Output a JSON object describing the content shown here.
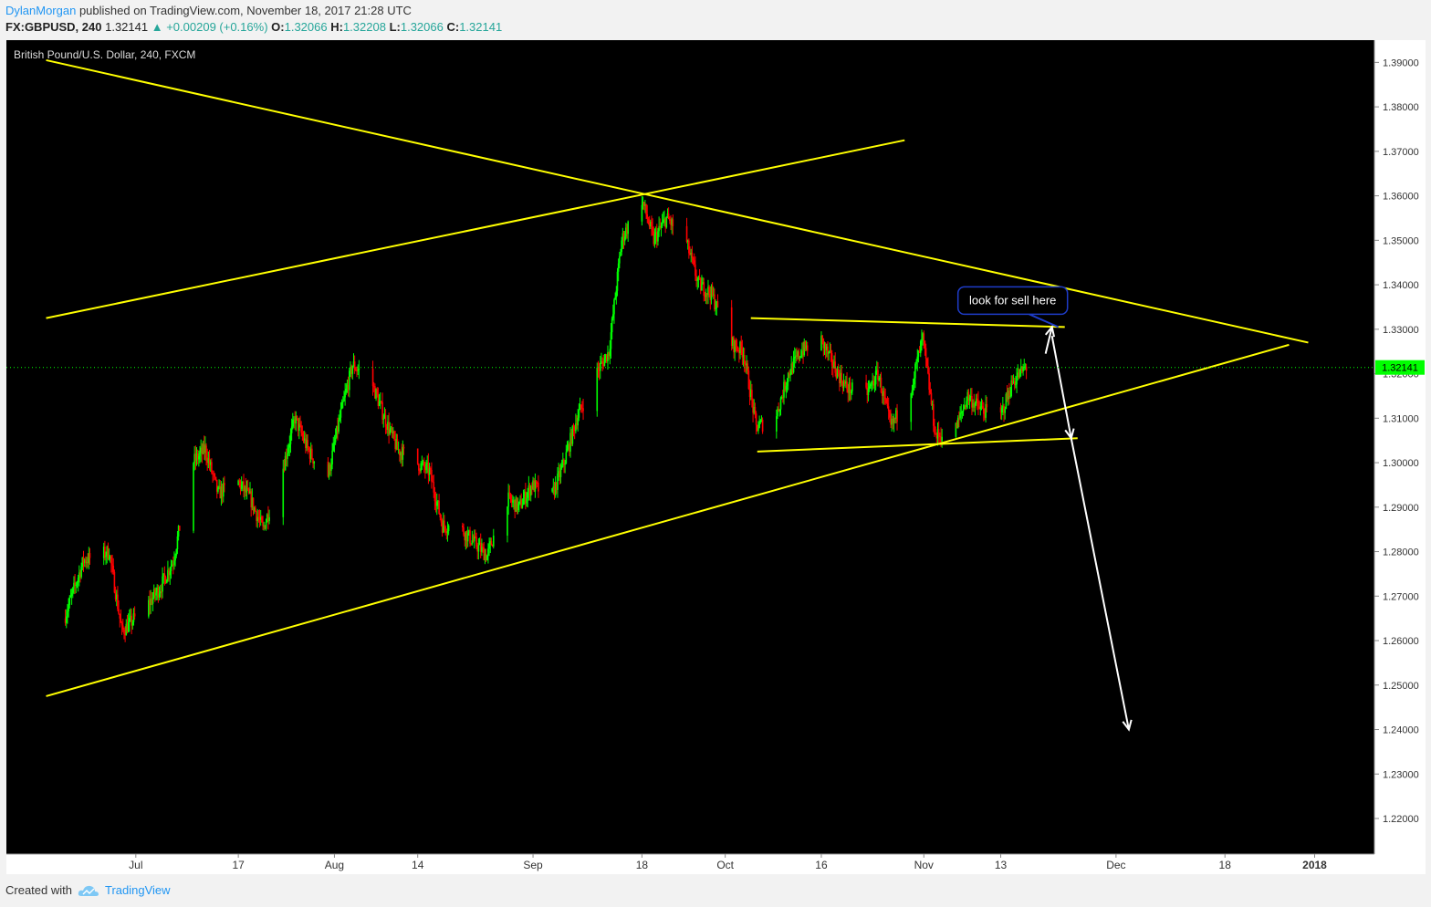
{
  "header": {
    "author": "DylanMorgan",
    "published": "published on TradingView.com, November 18, 2017 21:28 UTC",
    "symbol": "FX:GBPUSD, 240",
    "last": "1.32141",
    "change": "▲ +0.00209 (+0.16%)",
    "o_label": "O:",
    "o": "1.32066",
    "h_label": "H:",
    "h": "1.32208",
    "l_label": "L:",
    "l": "1.32066",
    "c_label": "C:",
    "c": "1.32141"
  },
  "footer": {
    "created_with": "Created with",
    "brand": "TradingView"
  },
  "colors": {
    "background": "#000000",
    "up": "#00ff00",
    "down": "#ff0000",
    "trendline": "#ffff00",
    "arrow": "#ffffff",
    "price_tag": "#00ff00"
  },
  "chart_data": {
    "type": "candlestick",
    "title": "British Pound/U.S. Dollar, 240, FXCM",
    "last_price": 1.32141,
    "last_price_label": "1.32141",
    "ylim": [
      1.212,
      1.395
    ],
    "yticks": [
      "1.22000",
      "1.23000",
      "1.24000",
      "1.25000",
      "1.26000",
      "1.27000",
      "1.28000",
      "1.29000",
      "1.30000",
      "1.31000",
      "1.32000",
      "1.33000",
      "1.34000",
      "1.35000",
      "1.36000",
      "1.37000",
      "1.38000",
      "1.39000"
    ],
    "xtick_labels": [
      "Jul",
      "17",
      "Aug",
      "14",
      "Sep",
      "18",
      "Oct",
      "16",
      "Nov",
      "13",
      "Dec",
      "18",
      "2018"
    ],
    "price_path": [
      [
        "2017-06-20",
        1.265
      ],
      [
        "2017-06-23",
        1.278
      ],
      [
        "2017-06-27",
        1.28
      ],
      [
        "2017-06-29",
        1.262
      ],
      [
        "2017-07-03",
        1.268
      ],
      [
        "2017-07-05",
        1.272
      ],
      [
        "2017-07-07",
        1.278
      ],
      [
        "2017-07-10",
        1.3
      ],
      [
        "2017-07-12",
        1.303
      ],
      [
        "2017-07-14",
        1.293
      ],
      [
        "2017-07-17",
        1.296
      ],
      [
        "2017-07-19",
        1.292
      ],
      [
        "2017-07-21",
        1.285
      ],
      [
        "2017-07-24",
        1.298
      ],
      [
        "2017-07-26",
        1.31
      ],
      [
        "2017-07-28",
        1.303
      ],
      [
        "2017-07-31",
        1.296
      ],
      [
        "2017-08-02",
        1.31
      ],
      [
        "2017-08-04",
        1.322
      ],
      [
        "2017-08-07",
        1.318
      ],
      [
        "2017-08-09",
        1.31
      ],
      [
        "2017-08-11",
        1.303
      ],
      [
        "2017-08-14",
        1.3
      ],
      [
        "2017-08-16",
        1.298
      ],
      [
        "2017-08-18",
        1.286
      ],
      [
        "2017-08-21",
        1.285
      ],
      [
        "2017-08-23",
        1.282
      ],
      [
        "2017-08-25",
        1.279
      ],
      [
        "2017-08-28",
        1.292
      ],
      [
        "2017-08-30",
        1.29
      ],
      [
        "2017-09-01",
        1.295
      ],
      [
        "2017-09-04",
        1.292
      ],
      [
        "2017-09-06",
        1.3
      ],
      [
        "2017-09-08",
        1.31
      ],
      [
        "2017-09-11",
        1.32
      ],
      [
        "2017-09-13",
        1.325
      ],
      [
        "2017-09-15",
        1.35
      ],
      [
        "2017-09-18",
        1.36
      ],
      [
        "2017-09-20",
        1.35
      ],
      [
        "2017-09-22",
        1.355
      ],
      [
        "2017-09-25",
        1.35
      ],
      [
        "2017-09-27",
        1.34
      ],
      [
        "2017-09-29",
        1.338
      ],
      [
        "2017-10-02",
        1.327
      ],
      [
        "2017-10-04",
        1.325
      ],
      [
        "2017-10-06",
        1.308
      ],
      [
        "2017-10-09",
        1.31
      ],
      [
        "2017-10-11",
        1.32
      ],
      [
        "2017-10-13",
        1.325
      ],
      [
        "2017-10-16",
        1.328
      ],
      [
        "2017-10-18",
        1.322
      ],
      [
        "2017-10-20",
        1.317
      ],
      [
        "2017-10-23",
        1.315
      ],
      [
        "2017-10-25",
        1.32
      ],
      [
        "2017-10-27",
        1.308
      ],
      [
        "2017-10-30",
        1.316
      ],
      [
        "2017-11-01",
        1.328
      ],
      [
        "2017-11-03",
        1.306
      ],
      [
        "2017-11-06",
        1.307
      ],
      [
        "2017-11-08",
        1.315
      ],
      [
        "2017-11-10",
        1.312
      ],
      [
        "2017-11-13",
        1.31
      ],
      [
        "2017-11-15",
        1.318
      ],
      [
        "2017-11-17",
        1.32141
      ]
    ],
    "annotations": [
      {
        "type": "trendline",
        "from": [
          "2017-06-17",
          1.3905
        ],
        "to": [
          "2017-12-31",
          1.327
        ]
      },
      {
        "type": "trendline",
        "from": [
          "2017-06-17",
          1.3325
        ],
        "to": [
          "2017-10-29",
          1.3725
        ]
      },
      {
        "type": "trendline",
        "from": [
          "2017-06-17",
          1.2475
        ],
        "to": [
          "2017-12-28",
          1.3265
        ]
      },
      {
        "type": "trendline",
        "from": [
          "2017-10-05",
          1.3325
        ],
        "to": [
          "2017-11-23",
          1.3305
        ]
      },
      {
        "type": "trendline",
        "from": [
          "2017-10-06",
          1.3025
        ],
        "to": [
          "2017-11-25",
          1.3055
        ]
      },
      {
        "type": "callout",
        "text": "look for sell here",
        "anchor": [
          "2017-11-22",
          1.3305
        ]
      },
      {
        "type": "arrow",
        "from": [
          "2017-11-20",
          1.3245
        ],
        "to": [
          "2017-11-21",
          1.3305
        ]
      },
      {
        "type": "arrow",
        "from": [
          "2017-11-21",
          1.3285
        ],
        "to": [
          "2017-11-24",
          1.3055
        ]
      },
      {
        "type": "arrow",
        "from": [
          "2017-11-24",
          1.3055
        ],
        "to": [
          "2017-12-03",
          1.24
        ]
      }
    ]
  }
}
